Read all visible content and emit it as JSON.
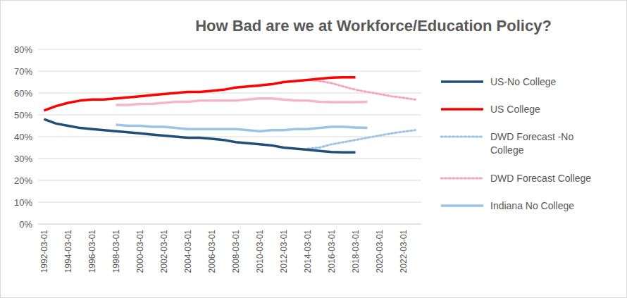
{
  "chart_data": {
    "type": "line",
    "title": "How Bad are we at Workforce/Education Policy?",
    "categories": [
      "1992-03-01",
      null,
      "1994-03-01",
      null,
      "1996-03-01",
      null,
      "1998-03-01",
      null,
      "2000-03-01",
      null,
      "2002-03-01",
      null,
      "2004-03-01",
      null,
      "2006-03-01",
      null,
      "2008-03-01",
      null,
      "2010-03-01",
      null,
      "2012-03-01",
      null,
      "2014-03-01",
      null,
      "2016-03-01",
      null,
      "2018-03-01",
      null,
      "2020-03-01",
      null,
      "2022-03-01",
      null
    ],
    "series": [
      {
        "name": "US-No College",
        "color": "#1f4e79",
        "line_style": "solid",
        "values": [
          48,
          46,
          45,
          44,
          43.5,
          43,
          42.5,
          42,
          41.5,
          41,
          40.5,
          40,
          39.5,
          39.5,
          39,
          38.5,
          37.5,
          37,
          36.5,
          36,
          35,
          34.5,
          34,
          33.5,
          33,
          32.8,
          32.8,
          null,
          null,
          null,
          null,
          null
        ]
      },
      {
        "name": "US College",
        "color": "#ff0000",
        "line_style": "solid",
        "values": [
          52,
          54,
          55.5,
          56.5,
          57,
          57,
          57.5,
          58,
          58.5,
          59,
          59.5,
          60,
          60.5,
          60.5,
          61,
          61.5,
          62.5,
          63,
          63.5,
          64,
          65,
          65.5,
          66,
          66.5,
          67,
          67.2,
          67.2,
          null,
          null,
          null,
          null,
          null
        ]
      },
      {
        "name": "DWD Forecast -No College",
        "color": "#9dc3e6",
        "line_style": "dotted",
        "values": [
          null,
          null,
          null,
          null,
          null,
          null,
          null,
          null,
          null,
          null,
          null,
          null,
          null,
          null,
          null,
          null,
          null,
          null,
          null,
          null,
          null,
          null,
          34.5,
          35,
          36.5,
          37.5,
          38.5,
          39.5,
          40.5,
          41.5,
          42.3,
          43
        ]
      },
      {
        "name": "DWD Forecast College",
        "color": "#f4a6bf",
        "line_style": "dotted",
        "values": [
          null,
          null,
          null,
          null,
          null,
          null,
          null,
          null,
          null,
          null,
          null,
          null,
          null,
          null,
          null,
          null,
          null,
          null,
          null,
          null,
          null,
          null,
          66,
          65.5,
          64.5,
          63,
          61.5,
          60.5,
          59.5,
          58.5,
          57.8,
          57
        ]
      },
      {
        "name": "Indiana No College",
        "color": "#9dc3e6",
        "line_style": "solid",
        "values": [
          null,
          null,
          null,
          null,
          null,
          null,
          45.5,
          45,
          45,
          44.5,
          44.5,
          44,
          43.5,
          43.5,
          43.5,
          43.5,
          43.5,
          43,
          42.5,
          43,
          43,
          43.5,
          43.5,
          44,
          44.5,
          44.5,
          44.2,
          44,
          null,
          null,
          null,
          null
        ]
      },
      {
        "color": "#f4b6c8",
        "line_style": "solid",
        "values": [
          null,
          null,
          null,
          null,
          null,
          null,
          54.5,
          54.5,
          55,
          55,
          55.5,
          56,
          56,
          56.5,
          56.5,
          56.5,
          56.5,
          57,
          57.5,
          57.5,
          57,
          56.5,
          56.5,
          56,
          55.8,
          55.8,
          55.8,
          56,
          null,
          null,
          null,
          null
        ]
      }
    ],
    "ylim": [
      0,
      80
    ],
    "yticks": [
      {
        "value": 0,
        "label": "0%"
      },
      {
        "value": 10,
        "label": "10%"
      },
      {
        "value": 20,
        "label": "20%"
      },
      {
        "value": 30,
        "label": "30%"
      },
      {
        "value": 40,
        "label": "40%"
      },
      {
        "value": 50,
        "label": "50%"
      },
      {
        "value": 60,
        "label": "60%"
      },
      {
        "value": 70,
        "label": "70%"
      },
      {
        "value": 80,
        "label": "80%"
      }
    ],
    "grid": true,
    "legend": "right"
  }
}
